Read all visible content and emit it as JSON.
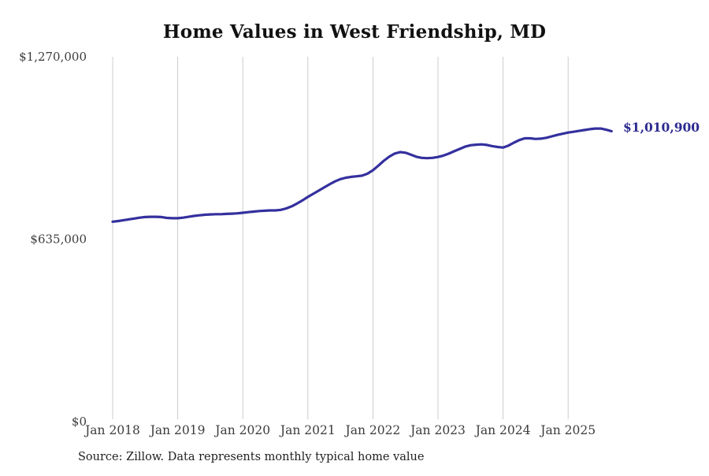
{
  "title": "Home Values in West Friendship, MD",
  "source_note": "Source: Zillow. Data represents monthly typical home value",
  "end_label": "$1,010,900",
  "colors": {
    "line": "#34309e",
    "end_label": "#2d2b90",
    "grid": "#cccccc",
    "tick_text": "#3c3c3c",
    "title_text": "#111111"
  },
  "chart_data": {
    "type": "line",
    "title": "Home Values in West Friendship, MD",
    "xlabel": "",
    "ylabel": "",
    "ylim": [
      0,
      1270000
    ],
    "grid": "vertical-year-lines-only",
    "legend": "none",
    "yticks": [
      {
        "value": 1270000,
        "label": "$1,270,000"
      },
      {
        "value": 635000,
        "label": "$635,000"
      },
      {
        "value": 0,
        "label": "$0"
      }
    ],
    "xticks": [
      {
        "month_index": 0,
        "label": "Jan 2018"
      },
      {
        "month_index": 12,
        "label": "Jan 2019"
      },
      {
        "month_index": 24,
        "label": "Jan 2020"
      },
      {
        "month_index": 36,
        "label": "Jan 2021"
      },
      {
        "month_index": 48,
        "label": "Jan 2022"
      },
      {
        "month_index": 60,
        "label": "Jan 2023"
      },
      {
        "month_index": 72,
        "label": "Jan 2024"
      },
      {
        "month_index": 84,
        "label": "Jan 2025"
      }
    ],
    "x": [
      "2018-01",
      "2018-02",
      "2018-03",
      "2018-04",
      "2018-05",
      "2018-06",
      "2018-07",
      "2018-08",
      "2018-09",
      "2018-10",
      "2018-11",
      "2018-12",
      "2019-01",
      "2019-02",
      "2019-03",
      "2019-04",
      "2019-05",
      "2019-06",
      "2019-07",
      "2019-08",
      "2019-09",
      "2019-10",
      "2019-11",
      "2019-12",
      "2020-01",
      "2020-02",
      "2020-03",
      "2020-04",
      "2020-05",
      "2020-06",
      "2020-07",
      "2020-08",
      "2020-09",
      "2020-10",
      "2020-11",
      "2020-12",
      "2021-01",
      "2021-02",
      "2021-03",
      "2021-04",
      "2021-05",
      "2021-06",
      "2021-07",
      "2021-08",
      "2021-09",
      "2021-10",
      "2021-11",
      "2021-12",
      "2022-01",
      "2022-02",
      "2022-03",
      "2022-04",
      "2022-05",
      "2022-06",
      "2022-07",
      "2022-08",
      "2022-09",
      "2022-10",
      "2022-11",
      "2022-12",
      "2023-01",
      "2023-02",
      "2023-03",
      "2023-04",
      "2023-05",
      "2023-06",
      "2023-07",
      "2023-08",
      "2023-09",
      "2023-10",
      "2023-11",
      "2023-12",
      "2024-01",
      "2024-02",
      "2024-03",
      "2024-04",
      "2024-05",
      "2024-06",
      "2024-07",
      "2024-08",
      "2024-09",
      "2024-10",
      "2024-11",
      "2024-12",
      "2025-01",
      "2025-02",
      "2025-03",
      "2025-04",
      "2025-05",
      "2025-06",
      "2025-07",
      "2025-08",
      "2025-09"
    ],
    "values": [
      696000,
      698000,
      701000,
      704000,
      707000,
      710000,
      712000,
      713000,
      713000,
      712000,
      709000,
      708000,
      708000,
      710000,
      713000,
      716000,
      718000,
      720000,
      721000,
      722000,
      722000,
      723000,
      724000,
      725000,
      727000,
      729000,
      731000,
      733000,
      734000,
      735000,
      735000,
      737000,
      742000,
      749000,
      759000,
      770000,
      782000,
      793000,
      804000,
      815000,
      826000,
      836000,
      844000,
      849000,
      852000,
      854000,
      856000,
      863000,
      875000,
      891000,
      908000,
      922000,
      933000,
      938000,
      936000,
      929000,
      922000,
      918000,
      917000,
      918000,
      921000,
      926000,
      933000,
      941000,
      949000,
      957000,
      962000,
      964000,
      965000,
      963000,
      959000,
      956000,
      954000,
      961000,
      971000,
      980000,
      986000,
      986000,
      984000,
      985000,
      988000,
      993000,
      998000,
      1002000,
      1006000,
      1009000,
      1012000,
      1015000,
      1018000,
      1020000,
      1020000,
      1016000,
      1010900
    ],
    "last_point_value": 1010900,
    "last_point_label": "$1,010,900"
  }
}
